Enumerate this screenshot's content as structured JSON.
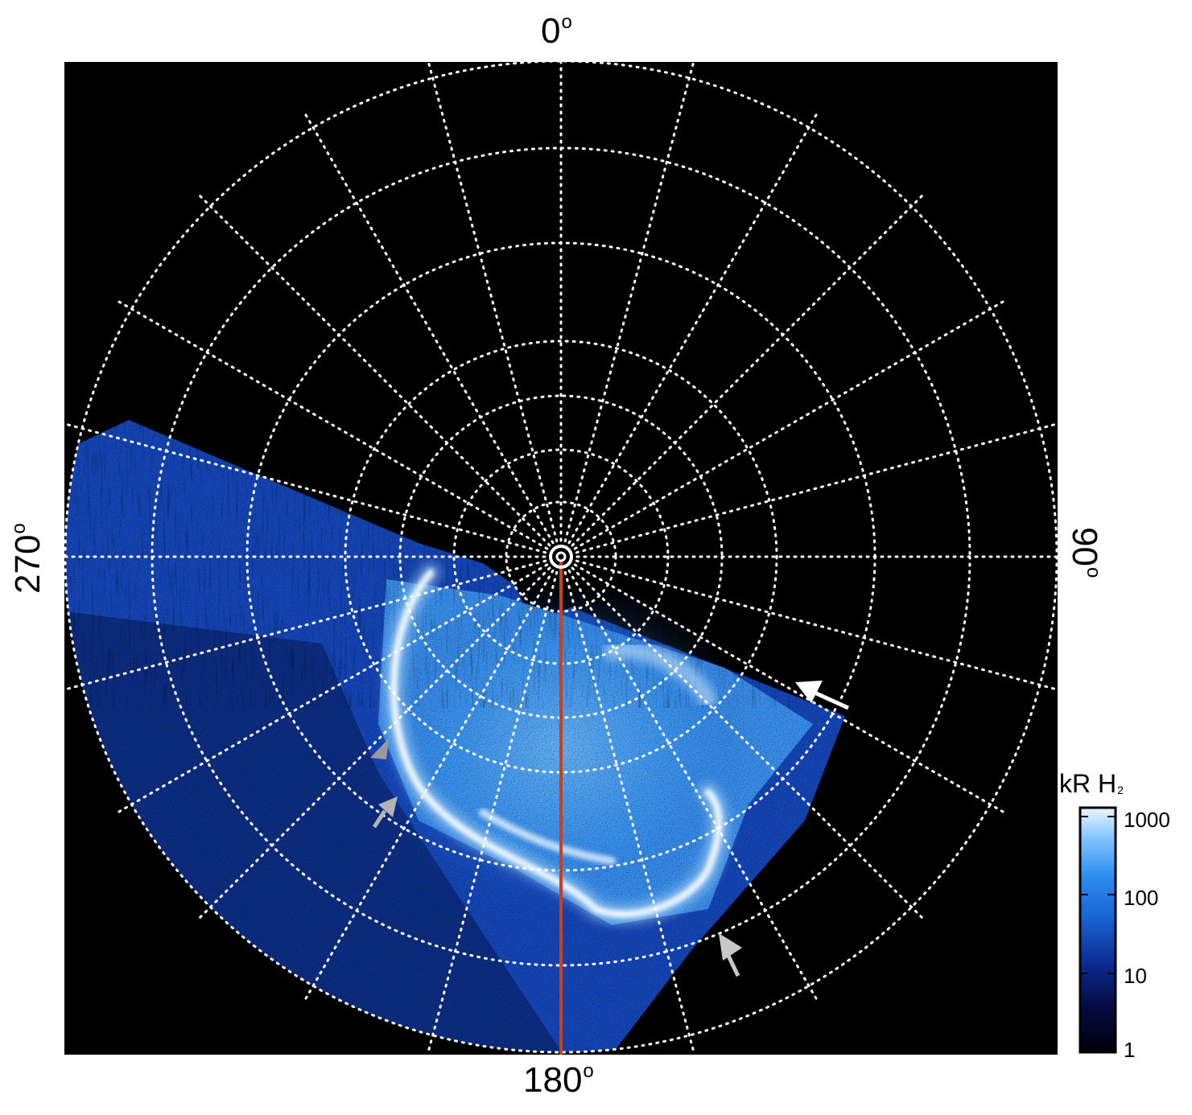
{
  "labels": {
    "top": "0",
    "bottom": "180",
    "left": "270",
    "right": "90",
    "degree_symbol": "o"
  },
  "colorbar": {
    "title_main": "kR H",
    "title_sub": "2",
    "ticks": [
      "1000",
      "100",
      "10",
      "1"
    ],
    "colormap": [
      "#000008",
      "#050a40",
      "#0b2a90",
      "#1760d0",
      "#2d8ef0",
      "#86c6ff",
      "#eaf6ff"
    ]
  },
  "colors": {
    "background": "#000000",
    "grid": "#ffffff",
    "meridian_line": "#c8401c",
    "arrow_white": "#ffffff",
    "arrow_grey": "#b4b4b4"
  }
}
